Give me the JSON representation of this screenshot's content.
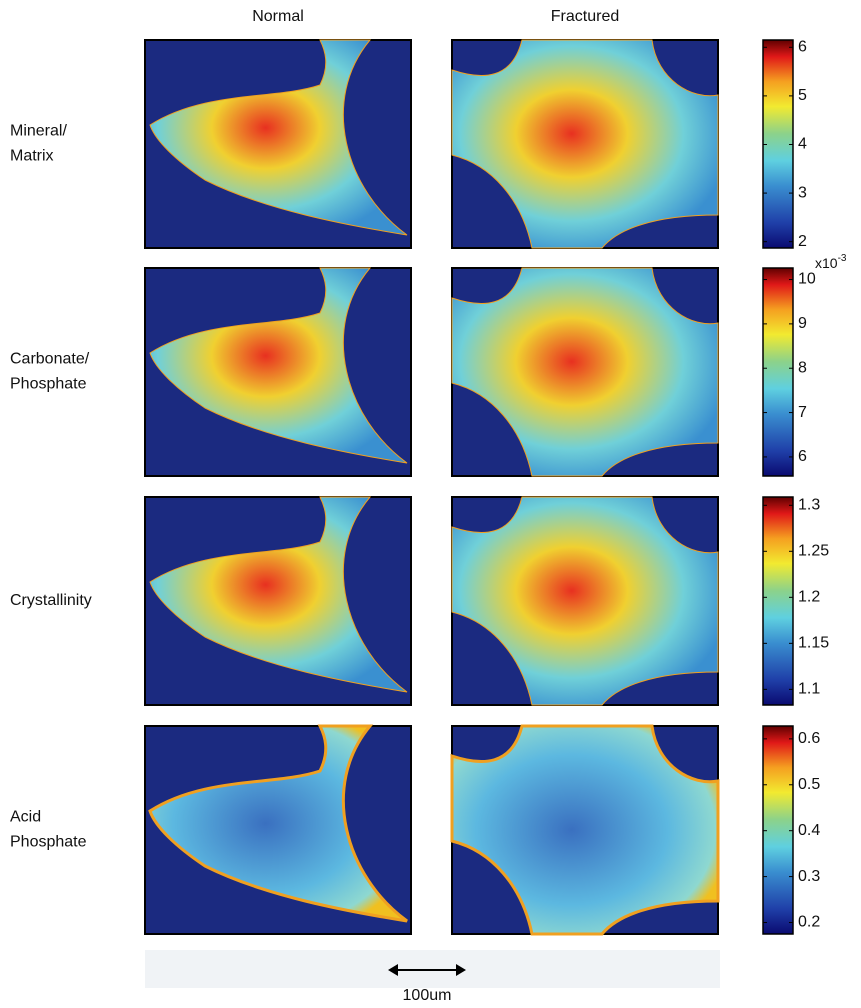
{
  "columns": [
    "Normal",
    "Fractured"
  ],
  "rows": [
    {
      "label_lines": [
        "Mineral/",
        "Matrix"
      ],
      "colorbar": {
        "lim": [
          1.87,
          6.15
        ],
        "ticks": [
          2,
          3,
          4,
          5,
          6
        ]
      }
    },
    {
      "label_lines": [
        "Carbonate/",
        "Phosphate"
      ],
      "colorbar": {
        "lim": [
          5.57,
          10.26
        ],
        "ticks": [
          6,
          7,
          8,
          9,
          10
        ],
        "multiplier": {
          "base": "x10",
          "exponent": "-3"
        }
      }
    },
    {
      "label_lines": [
        "Crystallinity"
      ],
      "colorbar": {
        "lim": [
          1.083,
          1.309
        ],
        "ticks": [
          1.1,
          1.15,
          1.2,
          1.25,
          1.3
        ]
      }
    },
    {
      "label_lines": [
        "Acid",
        "Phosphate"
      ],
      "colorbar": {
        "lim": [
          0.175,
          0.628
        ],
        "ticks": [
          0.2,
          0.3,
          0.4,
          0.5,
          0.6
        ]
      }
    }
  ],
  "scale_bar": "100um"
}
